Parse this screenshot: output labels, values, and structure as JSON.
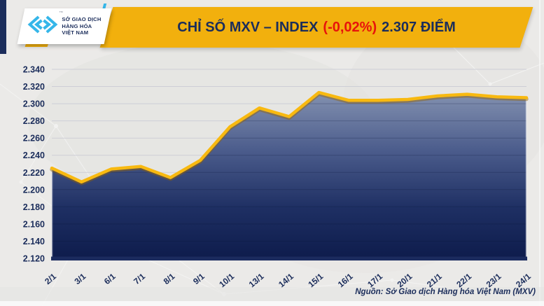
{
  "header": {
    "logo": {
      "line1": "SỞ GIAO DỊCH",
      "line2": "HÀNG HÓA",
      "line3": "VIỆT NAM",
      "tm": "™",
      "brand_cyan": "#35B6E9"
    },
    "title": {
      "part1": "CHỈ SỐ MXV – INDEX",
      "part2": "(-0,02%)",
      "part3": "2.307 ĐIỂM",
      "navy": "#1B2D5B",
      "red": "#E8130B",
      "banner_gold": "#F2B00D"
    }
  },
  "chart_data": {
    "type": "area",
    "title": "CHỈ SỐ MXV – INDEX (-0,02%) 2.307 ĐIỂM",
    "x_labels": [
      "2/1",
      "3/1",
      "6/1",
      "7/1",
      "8/1",
      "9/1",
      "10/1",
      "13/1",
      "14/1",
      "15/1",
      "16/1",
      "17/1",
      "20/1",
      "21/1",
      "22/1",
      "23/1",
      "24/1"
    ],
    "series": [
      {
        "name": "MXV-Index",
        "values": [
          2225,
          2209,
          2224,
          2227,
          2214,
          2234,
          2273,
          2295,
          2285,
          2313,
          2304,
          2304,
          2305,
          2309,
          2311,
          2308,
          2307
        ]
      }
    ],
    "ylim": [
      2120,
      2340
    ],
    "y_tick_step": 20,
    "y_tick_labels": [
      "2.340",
      "2.320",
      "2.300",
      "2.280",
      "2.260",
      "2.240",
      "2.220",
      "2.200",
      "2.180",
      "2.160",
      "2.140",
      "2.120"
    ],
    "grid": true,
    "legend": "none",
    "line_color": "#F8B910",
    "line_shadow_color": "rgba(150,100,0,0.45)",
    "area_gradient": [
      "#8391B0",
      "#4B5C8C",
      "#1E2F63",
      "#0E1C4C"
    ],
    "gridline_color": "#CDCED6",
    "gridline_on_fill_color": "rgba(5,15,45,0.22)",
    "axis_spine_color": "#1B2B5E",
    "axis_label_color": "#1B2D5B",
    "last_value_label": "2.307",
    "change_label": "-0,02%"
  },
  "footer": {
    "source": "Nguồn: Sở Giao dịch Hàng hóa Việt Nam (MXV)"
  }
}
